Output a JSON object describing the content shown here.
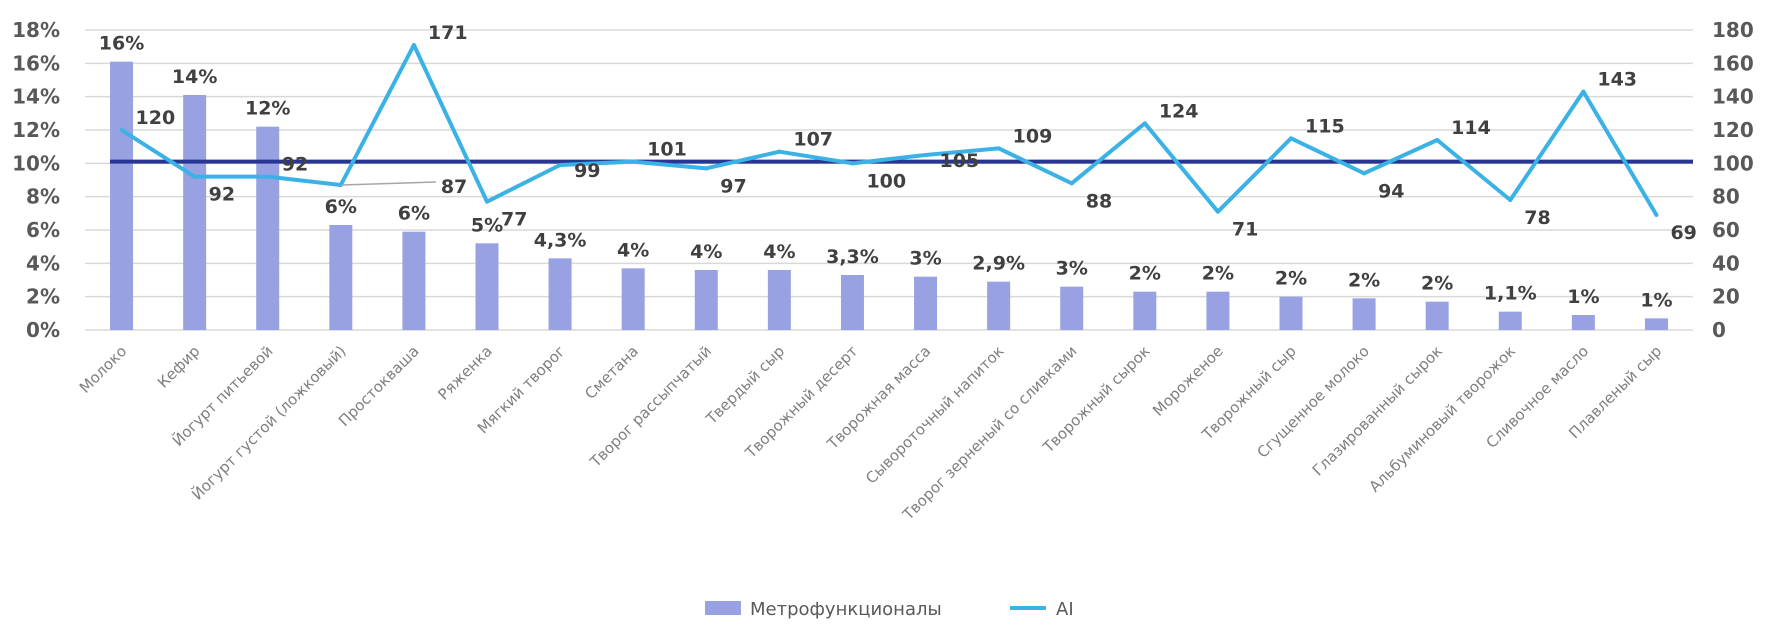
{
  "chart_data": {
    "type": "bar+line",
    "categories": [
      "Молоко",
      "Кефир",
      "Йогурт питьевой",
      "Йогурт густой (ложковый)",
      "Простокваша",
      "Ряженка",
      "Мягкий творог",
      "Сметана",
      "Творог рассыпчатый",
      "Твердый сыр",
      "Творожный десерт",
      "Творожная масса",
      "Сывороточный напиток",
      "Творог зерненый со сливками",
      "Творожный сырок",
      "Мороженое",
      "Творожный сыр",
      "Сгущенное молоко",
      "Глазированный сырок",
      "Альбуминовый творожок",
      "Сливочное масло",
      "Плавленый сыр"
    ],
    "series": [
      {
        "name": "Метрофункционалы",
        "type": "bar",
        "axis": "left",
        "color": "#98A2E2",
        "values": [
          16.1,
          14.1,
          12.2,
          6.3,
          5.9,
          5.2,
          4.3,
          3.7,
          3.6,
          3.6,
          3.3,
          3.2,
          2.9,
          2.6,
          2.3,
          2.3,
          2.0,
          1.9,
          1.7,
          1.1,
          0.9,
          0.7
        ],
        "labels": [
          "16%",
          "14%",
          "12%",
          "6%",
          "6%",
          "5%",
          "4,3%",
          "4%",
          "4%",
          "4%",
          "3,3%",
          "3%",
          "2,9%",
          "3%",
          "2%",
          "2%",
          "2%",
          "2%",
          "2%",
          "1,1%",
          "1%",
          "1%"
        ]
      },
      {
        "name": "AI",
        "type": "line",
        "axis": "right",
        "color": "#3BB2E6",
        "values": [
          120,
          92,
          92,
          87,
          171,
          77,
          99,
          101,
          97,
          107,
          100,
          105,
          109,
          88,
          124,
          71,
          115,
          94,
          114,
          78,
          143,
          69
        ],
        "labels": [
          "120",
          "92",
          "92",
          "87",
          "171",
          "77",
          "99",
          "101",
          "97",
          "107",
          "100",
          "105",
          "109",
          "88",
          "124",
          "71",
          "115",
          "94",
          "114",
          "78",
          "143",
          "69"
        ]
      }
    ],
    "reference_line": {
      "value": 101,
      "axis": "right",
      "color": "#283593"
    },
    "y_left": {
      "range": [
        0,
        18
      ],
      "ticks": [
        "0%",
        "2%",
        "4%",
        "6%",
        "8%",
        "10%",
        "12%",
        "14%",
        "16%",
        "18%"
      ]
    },
    "y_right": {
      "range": [
        0,
        180
      ],
      "ticks": [
        "0",
        "20",
        "40",
        "60",
        "80",
        "100",
        "120",
        "140",
        "160",
        "180"
      ]
    },
    "grid": true,
    "legend": "bottom-center"
  }
}
